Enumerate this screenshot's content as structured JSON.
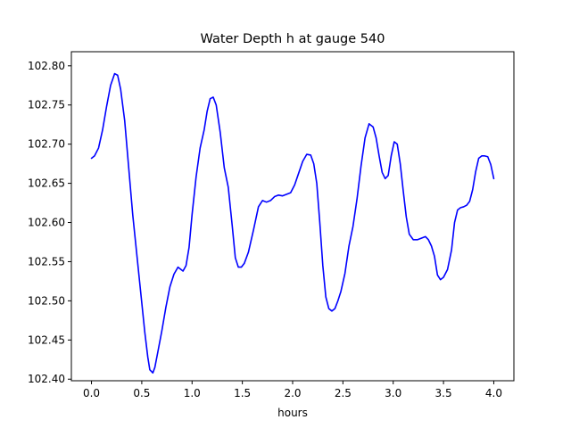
{
  "chart_data": {
    "type": "line",
    "title": "Water Depth h at gauge 540",
    "xlabel": "hours",
    "ylabel": "",
    "xlim": [
      -0.2,
      4.2
    ],
    "ylim": [
      102.398,
      102.818
    ],
    "grid": false,
    "x_ticks": [
      0.0,
      0.5,
      1.0,
      1.5,
      2.0,
      2.5,
      3.0,
      3.5,
      4.0
    ],
    "x_tick_labels": [
      "0.0",
      "0.5",
      "1.0",
      "1.5",
      "2.0",
      "2.5",
      "3.0",
      "3.5",
      "4.0"
    ],
    "y_ticks": [
      102.4,
      102.45,
      102.5,
      102.55,
      102.6,
      102.65,
      102.7,
      102.75,
      102.8
    ],
    "y_tick_labels": [
      "102.40",
      "102.45",
      "102.50",
      "102.55",
      "102.60",
      "102.65",
      "102.70",
      "102.75",
      "102.80"
    ],
    "series": [
      {
        "color": "#0000ff",
        "x": [
          0.0,
          0.03,
          0.07,
          0.11,
          0.15,
          0.19,
          0.23,
          0.26,
          0.29,
          0.33,
          0.37,
          0.41,
          0.45,
          0.49,
          0.53,
          0.56,
          0.58,
          0.61,
          0.63,
          0.66,
          0.7,
          0.74,
          0.78,
          0.82,
          0.86,
          0.88,
          0.91,
          0.94,
          0.97,
          1.0,
          1.04,
          1.08,
          1.12,
          1.15,
          1.18,
          1.21,
          1.24,
          1.28,
          1.32,
          1.36,
          1.4,
          1.43,
          1.46,
          1.49,
          1.52,
          1.56,
          1.61,
          1.66,
          1.7,
          1.74,
          1.78,
          1.82,
          1.86,
          1.9,
          1.94,
          1.98,
          2.02,
          2.06,
          2.1,
          2.14,
          2.18,
          2.21,
          2.24,
          2.27,
          2.3,
          2.33,
          2.36,
          2.39,
          2.42,
          2.45,
          2.48,
          2.52,
          2.56,
          2.6,
          2.64,
          2.68,
          2.72,
          2.76,
          2.8,
          2.83,
          2.86,
          2.89,
          2.92,
          2.95,
          2.98,
          3.01,
          3.04,
          3.07,
          3.1,
          3.13,
          3.16,
          3.2,
          3.24,
          3.28,
          3.32,
          3.35,
          3.38,
          3.41,
          3.44,
          3.47,
          3.5,
          3.54,
          3.58,
          3.61,
          3.64,
          3.67,
          3.7,
          3.73,
          3.76,
          3.79,
          3.82,
          3.85,
          3.88,
          3.91,
          3.94,
          3.97,
          4.0
        ],
        "y": [
          102.682,
          102.685,
          102.695,
          102.718,
          102.748,
          102.775,
          102.79,
          102.788,
          102.77,
          102.73,
          102.67,
          102.61,
          102.56,
          102.51,
          102.46,
          102.428,
          102.412,
          102.408,
          102.415,
          102.435,
          102.462,
          102.492,
          102.518,
          102.534,
          102.543,
          102.541,
          102.538,
          102.545,
          102.568,
          102.61,
          102.658,
          102.695,
          102.718,
          102.742,
          102.758,
          102.76,
          102.75,
          102.715,
          102.67,
          102.645,
          102.595,
          102.555,
          102.543,
          102.543,
          102.548,
          102.562,
          102.59,
          102.62,
          102.628,
          102.626,
          102.628,
          102.633,
          102.635,
          102.634,
          102.636,
          102.638,
          102.648,
          102.663,
          102.678,
          102.687,
          102.686,
          102.675,
          102.65,
          102.6,
          102.545,
          102.505,
          102.49,
          102.487,
          102.49,
          102.5,
          102.512,
          102.535,
          102.57,
          102.595,
          102.63,
          102.672,
          102.708,
          102.726,
          102.722,
          102.708,
          102.685,
          102.664,
          102.656,
          102.66,
          102.685,
          102.703,
          102.7,
          102.675,
          102.64,
          102.607,
          102.585,
          102.578,
          102.578,
          102.58,
          102.582,
          102.578,
          102.57,
          102.557,
          102.533,
          102.527,
          102.53,
          102.54,
          102.565,
          102.6,
          102.616,
          102.619,
          102.62,
          102.622,
          102.627,
          102.642,
          102.665,
          102.682,
          102.685,
          102.685,
          102.684,
          102.674,
          102.656
        ]
      }
    ]
  }
}
